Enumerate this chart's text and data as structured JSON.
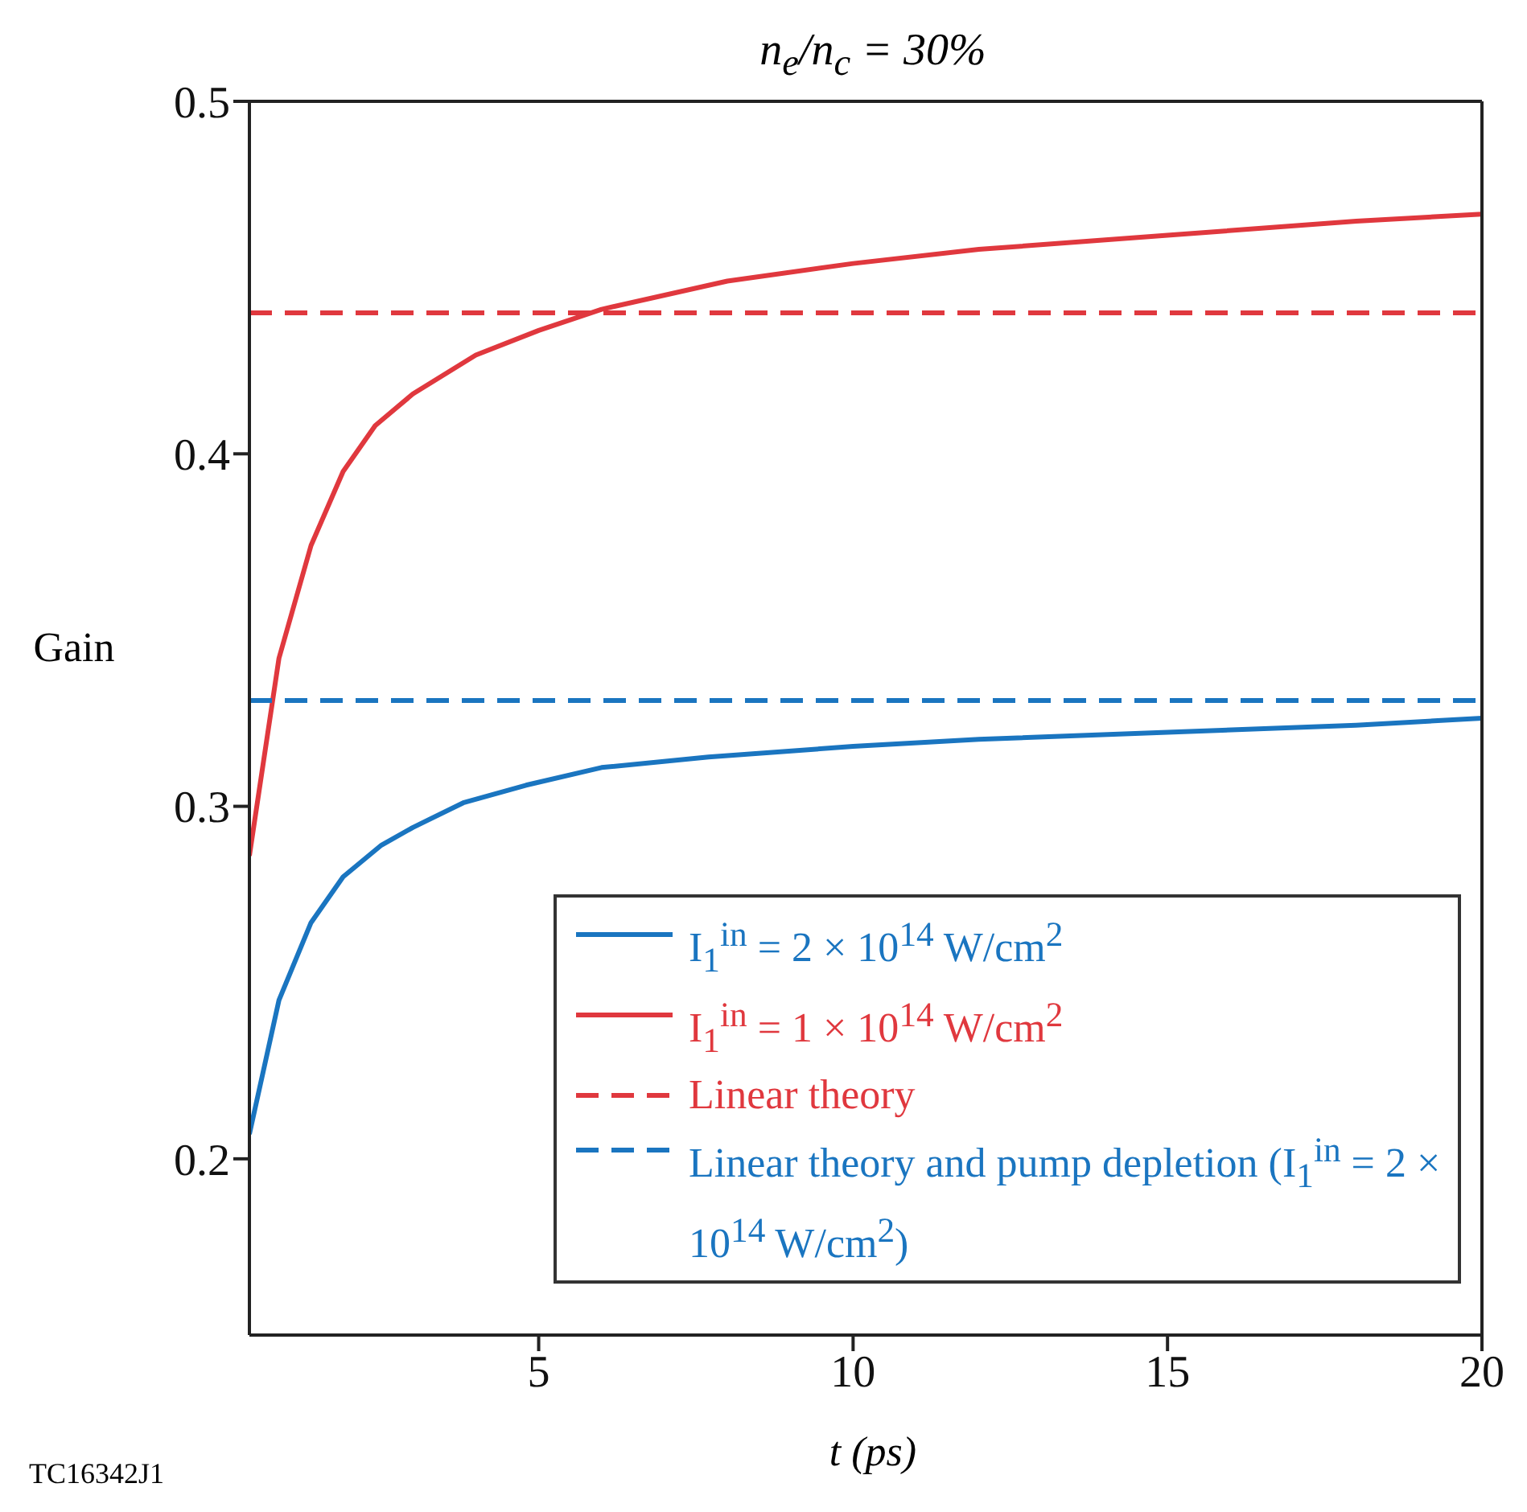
{
  "chart_data": {
    "type": "line",
    "title": "n$_{e}$/n$_{c}$ = 30%",
    "xlabel": "t (ps)",
    "ylabel": "Gain",
    "xlim": [
      0.4,
      20
    ],
    "xticks": [
      5,
      10,
      15,
      20
    ],
    "ylim": [
      0.15,
      0.5
    ],
    "yticks": [
      0.2,
      0.3,
      0.4,
      0.5
    ],
    "grid": false,
    "legend": "bottom right",
    "marker": "none",
    "annotations": [
      "TC16342J1"
    ],
    "series": [
      {
        "name": "I$_{1}$$^{in}$ = 2 × 10$^{14}$ W/cm$^{2}$",
        "color": "#1a75c0",
        "line_style": "solid",
        "x": [
          0.4,
          0.87,
          1.38,
          1.89,
          2.5,
          3.0,
          3.8,
          4.8,
          6.0,
          7.7,
          10,
          12,
          15,
          18,
          20
        ],
        "values": [
          0.207,
          0.245,
          0.267,
          0.28,
          0.289,
          0.294,
          0.301,
          0.306,
          0.311,
          0.314,
          0.317,
          0.319,
          0.321,
          0.323,
          0.325
        ]
      },
      {
        "name": "I$_{1}$$^{in}$ = 1 × 10$^{14}$ W/cm$^{2}$",
        "color": "#e0383e",
        "line_style": "solid",
        "x": [
          0.4,
          0.87,
          1.38,
          1.89,
          2.4,
          3.0,
          4.0,
          5.0,
          6.0,
          8.0,
          10,
          12,
          15,
          18,
          20
        ],
        "values": [
          0.286,
          0.342,
          0.374,
          0.395,
          0.408,
          0.417,
          0.428,
          0.435,
          0.441,
          0.449,
          0.454,
          0.458,
          0.462,
          0.466,
          0.468
        ]
      },
      {
        "name": "Linear theory",
        "color": "#e0383e",
        "line_style": "dashed",
        "x": [
          0.4,
          20
        ],
        "values": [
          0.44,
          0.44
        ]
      },
      {
        "name": "Linear theory and pump depletion (I$_{1}$$^{in}$ = 2 × 10$^{14}$ W/cm$^{2}$)",
        "color": "#1a75c0",
        "line_style": "dashed",
        "x": [
          0.4,
          20
        ],
        "values": [
          0.33,
          0.33
        ]
      }
    ]
  }
}
